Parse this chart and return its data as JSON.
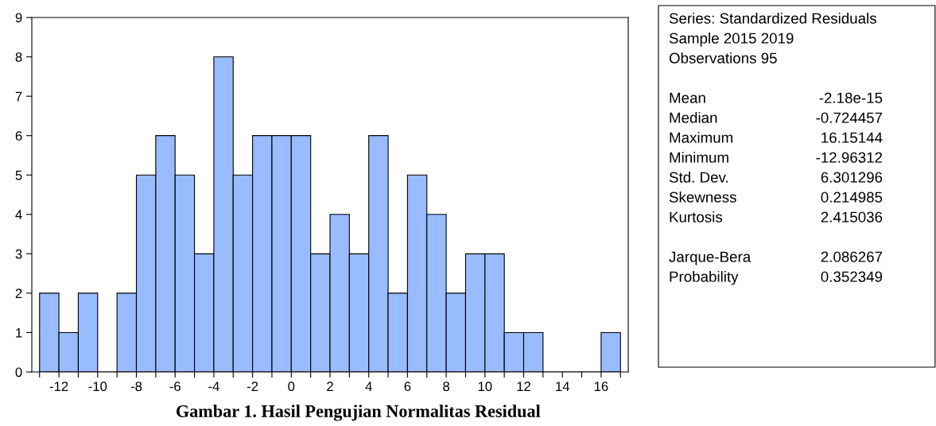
{
  "chart_data": {
    "type": "histogram",
    "title": "Gambar 1. Hasil Pengujian Normalitas Residual",
    "bins": [
      -13,
      -12,
      -11,
      -10,
      -9,
      -8,
      -7,
      -6,
      -5,
      -4,
      -3,
      -2,
      -1,
      0,
      1,
      2,
      3,
      4,
      5,
      6,
      7,
      8,
      9,
      10,
      11,
      12,
      13,
      14,
      15,
      16,
      17
    ],
    "values": [
      2,
      1,
      2,
      0,
      2,
      5,
      6,
      5,
      3,
      8,
      5,
      6,
      6,
      6,
      3,
      4,
      3,
      6,
      2,
      5,
      4,
      2,
      3,
      3,
      1,
      1,
      0,
      0,
      0,
      1
    ],
    "color": "#99bbff",
    "xlim": [
      -13.4,
      17.4
    ],
    "xticks": [
      {
        "value": -13,
        "label": null
      },
      {
        "value": -12,
        "label": "-12"
      },
      {
        "value": -11,
        "label": null
      },
      {
        "value": -10,
        "label": "-10"
      },
      {
        "value": -9,
        "label": null
      },
      {
        "value": -8,
        "label": "-8"
      },
      {
        "value": -7,
        "label": null
      },
      {
        "value": -6,
        "label": "-6"
      },
      {
        "value": -5,
        "label": null
      },
      {
        "value": -4,
        "label": "-4"
      },
      {
        "value": -3,
        "label": null
      },
      {
        "value": -2,
        "label": "-2"
      },
      {
        "value": -1,
        "label": null
      },
      0,
      {
        "value": 1,
        "label": null
      },
      2,
      {
        "value": 3,
        "label": null
      },
      4,
      {
        "value": 5,
        "label": null
      },
      6,
      {
        "value": 7,
        "label": null
      },
      8,
      {
        "value": 9,
        "label": null
      },
      10,
      {
        "value": 11,
        "label": null
      },
      12,
      {
        "value": 13,
        "label": null
      },
      14,
      {
        "value": 15,
        "label": null
      },
      16,
      {
        "value": 17,
        "label": null
      }
    ],
    "ylim": [
      0,
      9
    ],
    "yticks": [
      0,
      1,
      2,
      3,
      4,
      5,
      6,
      7,
      8,
      9
    ],
    "grid": false,
    "annotations": [
      "Series: Standardized Residuals",
      "Sample 2015 2019",
      "Observations 95",
      "Mean",
      "-2.18e-15",
      "Median",
      "-0.724457",
      "Maximum",
      "16.15144",
      "Minimum",
      "-12.96312",
      "Std. Dev.",
      "6.301296",
      "Skewness",
      "0.214985",
      "Kurtosis",
      "2.415036",
      "Jarque-Bera",
      "2.086267",
      "Probability",
      "0.352349"
    ]
  }
}
